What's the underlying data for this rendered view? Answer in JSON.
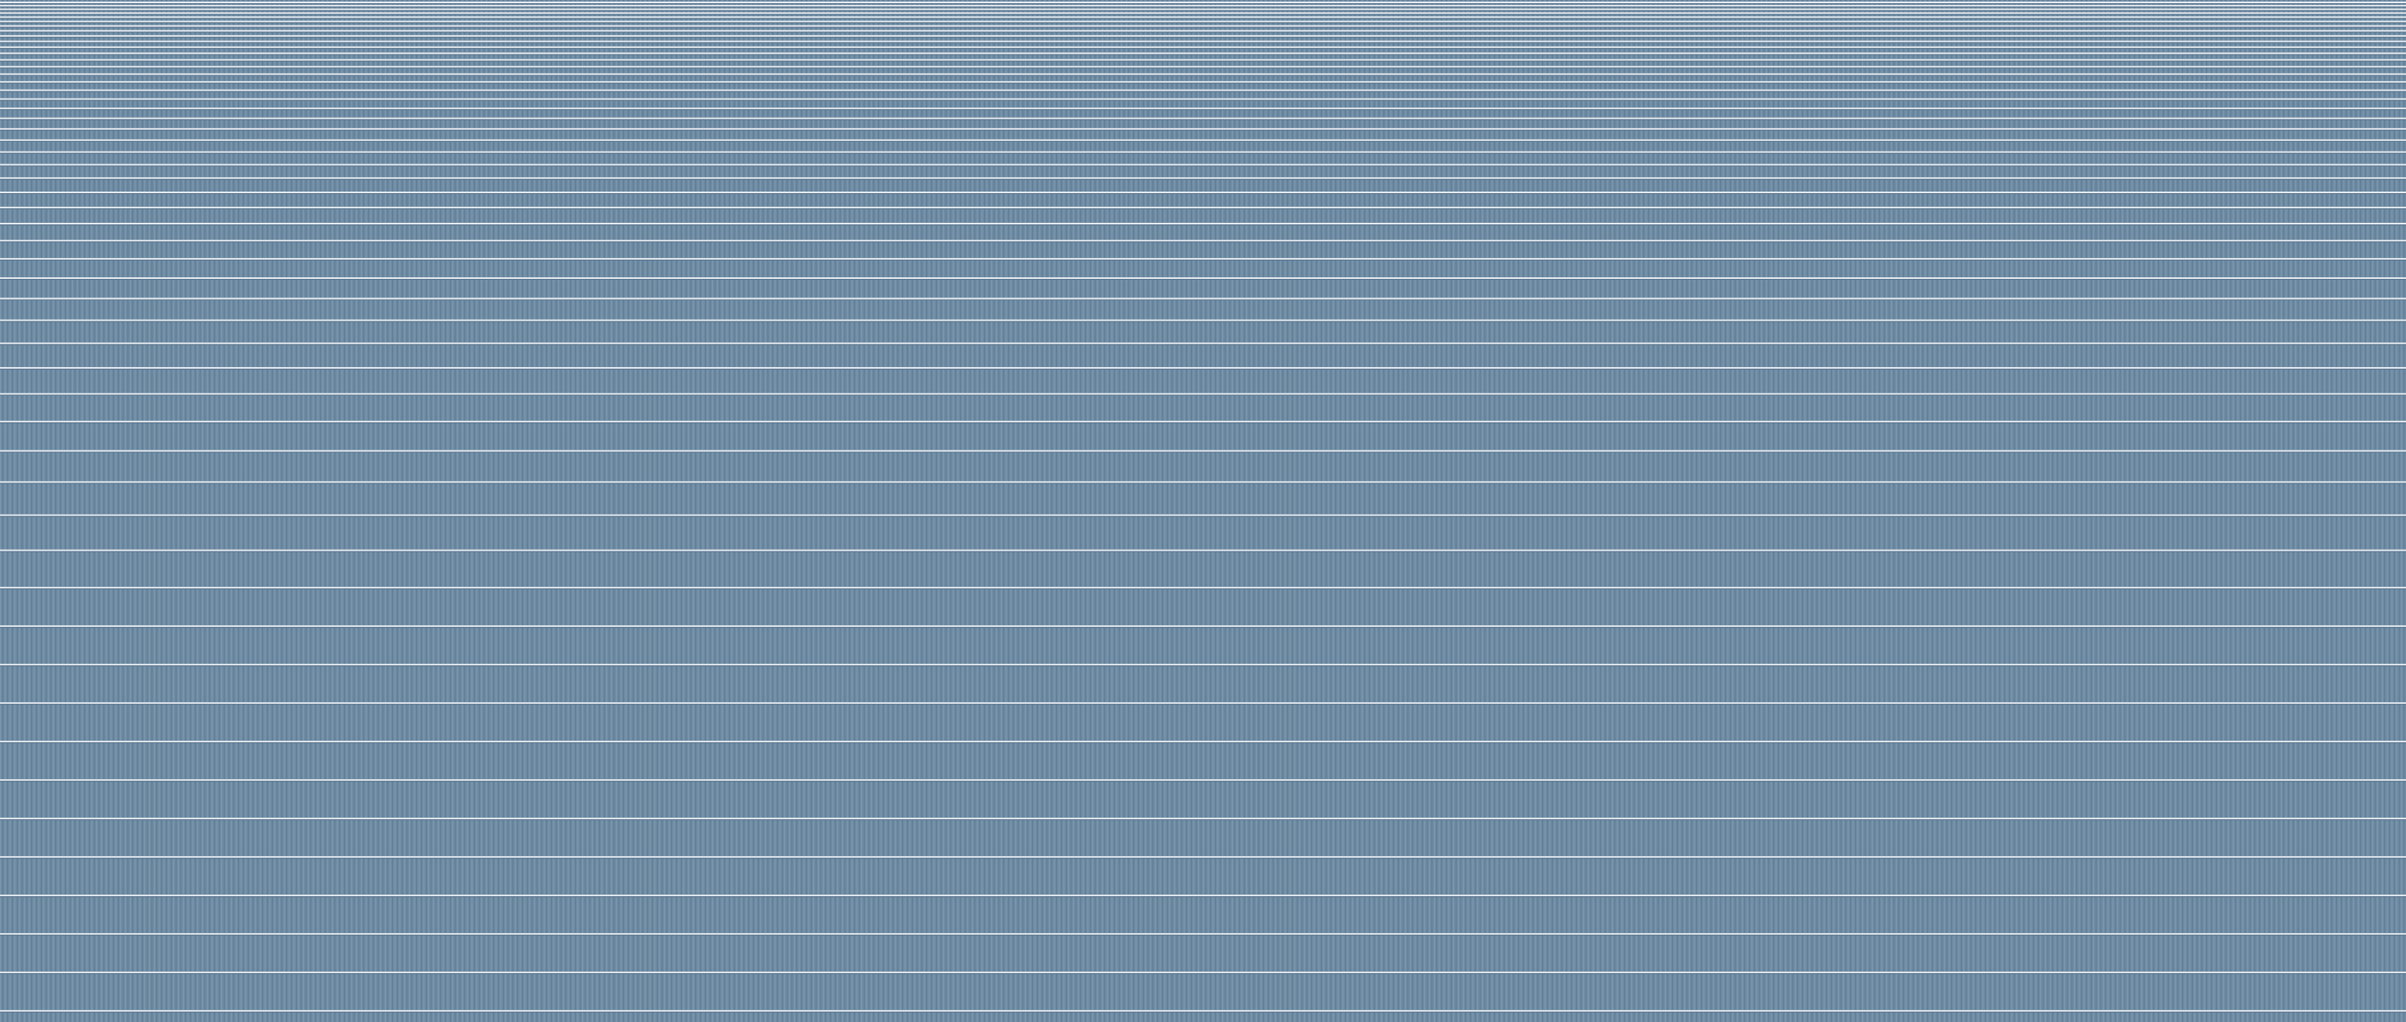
{
  "pattern": {
    "name": "blue-gray-horizontal-stripe-pattern",
    "colors": {
      "base": "#6e8ba3",
      "stripe_light": "#e9eef3",
      "stripe_shadow": "#56708a",
      "vertical_fine_light": "#7d99b0",
      "vertical_fine_dark": "#5f7c95"
    }
  }
}
